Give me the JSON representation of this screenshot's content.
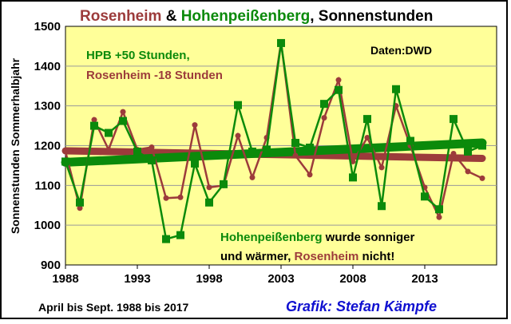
{
  "colors": {
    "rosenheim": "#9c3b3b",
    "hpb": "#0b8a0b",
    "plot_bg": "#ffff99",
    "grid": "#9a9a9a",
    "credit": "#1010d0"
  },
  "title": {
    "part1": "Rosenheim",
    "amp": " & ",
    "part2": "Hohenpeißenberg",
    "part3": ", Sonnenstunden"
  },
  "annotations": {
    "hpb_offset": "HPB +50 Stunden,",
    "ros_offset": "Rosenheim -18 Stunden",
    "source": "Daten:DWD",
    "conclusion_line1_a": "Hohenpeißenberg",
    "conclusion_line1_b": " wurde sonniger",
    "conclusion_line2_a": "und wärmer, ",
    "conclusion_line2_b": "Rosenheim",
    "conclusion_line2_c": " nicht!",
    "period": "April bis Sept. 1988 bis 2017",
    "credit": "Grafik: Stefan Kämpfe"
  },
  "chart_data": {
    "type": "line",
    "title": "Rosenheim & Hohenpeißenberg, Sonnenstunden",
    "xlabel": "",
    "ylabel": "Sonnenstunden Sommerhalbjahr",
    "xlim": [
      1988,
      2018
    ],
    "ylim": [
      900,
      1500
    ],
    "x_ticks": [
      "1988",
      "1993",
      "1998",
      "2003",
      "2008",
      "2013"
    ],
    "y_ticks": [
      "900",
      "1000",
      "1100",
      "1200",
      "1300",
      "1400",
      "1500"
    ],
    "grid": true,
    "x": [
      1988,
      1989,
      1990,
      1991,
      1992,
      1993,
      1994,
      1995,
      1996,
      1997,
      1998,
      1999,
      2000,
      2001,
      2002,
      2003,
      2004,
      2005,
      2006,
      2007,
      2008,
      2009,
      2010,
      2011,
      2012,
      2013,
      2014,
      2015,
      2016,
      2017
    ],
    "series": [
      {
        "name": "Rosenheim",
        "values": [
          1185,
          1043,
          1265,
          1190,
          1285,
          1190,
          1196,
          1068,
          1070,
          1252,
          1095,
          1100,
          1225,
          1120,
          1220,
          1460,
          1175,
          1127,
          1270,
          1365,
          1160,
          1220,
          1145,
          1300,
          1200,
          1095,
          1020,
          1180,
          1135,
          1118
        ]
      },
      {
        "name": "Hohenpeißenberg",
        "values": [
          1160,
          1057,
          1250,
          1232,
          1262,
          1185,
          1163,
          965,
          975,
          1155,
          1057,
          1103,
          1302,
          1185,
          1190,
          1458,
          1207,
          1195,
          1305,
          1340,
          1120,
          1267,
          1048,
          1342,
          1212,
          1072,
          1040,
          1267,
          1185,
          1200
        ]
      }
    ],
    "trends": [
      {
        "name": "Rosenheim",
        "start": [
          1988,
          1187
        ],
        "end": [
          2017,
          1168
        ]
      },
      {
        "name": "Hohenpeißenberg",
        "start": [
          1988,
          1158
        ],
        "end": [
          2017,
          1207
        ]
      }
    ]
  }
}
